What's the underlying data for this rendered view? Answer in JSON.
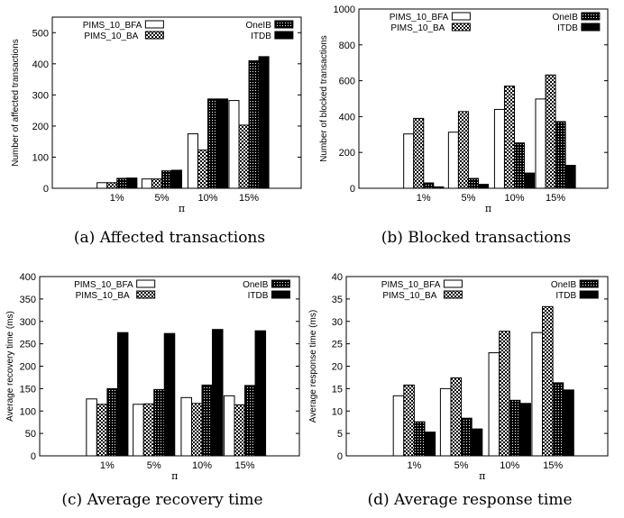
{
  "patterns": {
    "PIMS_10_BFA": "white",
    "PIMS_10_BA": "check",
    "OneIB": "dense",
    "ITDB": "black"
  },
  "chart_data": [
    {
      "type": "bar",
      "caption": "(a)  Affected transactions",
      "xlabel": "π",
      "ylabel": "Number of affected transactions",
      "categories": [
        "1%",
        "5%",
        "10%",
        "15%"
      ],
      "ylim": [
        0,
        550
      ],
      "yticks": [
        "0",
        "100",
        "200",
        "300",
        "400",
        "500"
      ],
      "ytick_values": [
        0,
        100,
        200,
        300,
        400,
        500
      ],
      "legend": {
        "left": [
          "PIMS_10_BFA",
          "PIMS_10_BA"
        ],
        "right": [
          "OneIB",
          "ITDB"
        ]
      },
      "series": [
        {
          "name": "PIMS_10_BFA",
          "values": [
            18,
            30,
            175,
            282
          ]
        },
        {
          "name": "PIMS_10_BA",
          "values": [
            18,
            30,
            123,
            203
          ]
        },
        {
          "name": "OneIB",
          "values": [
            32,
            56,
            287,
            410
          ]
        },
        {
          "name": "ITDB",
          "values": [
            33,
            58,
            287,
            423
          ]
        }
      ]
    },
    {
      "type": "bar",
      "caption": "(b)  Blocked transactions",
      "xlabel": "π",
      "ylabel": "Number of blocked transactions",
      "categories": [
        "1%",
        "5%",
        "10%",
        "15%"
      ],
      "ylim": [
        0,
        1000
      ],
      "yticks": [
        "0",
        "200",
        "400",
        "600",
        "800",
        "1000"
      ],
      "ytick_values": [
        0,
        200,
        400,
        600,
        800,
        1000
      ],
      "legend": {
        "left": [
          "PIMS_10_BFA",
          "PIMS_10_BA"
        ],
        "right": [
          "OneIB",
          "ITDB"
        ]
      },
      "series": [
        {
          "name": "PIMS_10_BFA",
          "values": [
            303,
            313,
            440,
            498
          ]
        },
        {
          "name": "PIMS_10_BA",
          "values": [
            390,
            428,
            570,
            632
          ]
        },
        {
          "name": "OneIB",
          "values": [
            30,
            55,
            253,
            372
          ]
        },
        {
          "name": "ITDB",
          "values": [
            8,
            22,
            85,
            128
          ]
        }
      ]
    },
    {
      "type": "bar",
      "caption": "(c)  Average recovery time",
      "xlabel": "π",
      "ylabel": "Average recovery time (ms)",
      "categories": [
        "1%",
        "5%",
        "10%",
        "15%"
      ],
      "ylim": [
        0,
        400
      ],
      "yticks": [
        "0",
        "50",
        "100",
        "150",
        "200",
        "250",
        "300",
        "350",
        "400"
      ],
      "ytick_values": [
        0,
        50,
        100,
        150,
        200,
        250,
        300,
        350,
        400
      ],
      "legend": {
        "left": [
          "PIMS_10_BFA",
          "PIMS_10_BA"
        ],
        "right": [
          "OneIB",
          "ITDB"
        ]
      },
      "series": [
        {
          "name": "PIMS_10_BFA",
          "values": [
            127,
            115,
            130,
            134
          ]
        },
        {
          "name": "PIMS_10_BA",
          "values": [
            115,
            116,
            117,
            114
          ]
        },
        {
          "name": "OneIB",
          "values": [
            150,
            148,
            158,
            157
          ]
        },
        {
          "name": "ITDB",
          "values": [
            275,
            273,
            282,
            279
          ]
        }
      ]
    },
    {
      "type": "bar",
      "caption": "(d)  Average response time",
      "xlabel": "π",
      "ylabel": "Average response time (ms)",
      "categories": [
        "1%",
        "5%",
        "10%",
        "15%"
      ],
      "ylim": [
        0,
        40
      ],
      "yticks": [
        "0",
        "5",
        "10",
        "15",
        "20",
        "25",
        "30",
        "35",
        "40"
      ],
      "ytick_values": [
        0,
        5,
        10,
        15,
        20,
        25,
        30,
        35,
        40
      ],
      "legend": {
        "left": [
          "PIMS_10_BFA",
          "PIMS_10_BA"
        ],
        "right": [
          "OneIB",
          "ITDB"
        ]
      },
      "series": [
        {
          "name": "PIMS_10_BFA",
          "values": [
            13.4,
            15,
            23,
            27.5
          ]
        },
        {
          "name": "PIMS_10_BA",
          "values": [
            15.8,
            17.4,
            27.8,
            33.3
          ]
        },
        {
          "name": "OneIB",
          "values": [
            7.6,
            8.4,
            12.4,
            16.3
          ]
        },
        {
          "name": "ITDB",
          "values": [
            5.3,
            6,
            11.7,
            14.7
          ]
        }
      ]
    }
  ]
}
